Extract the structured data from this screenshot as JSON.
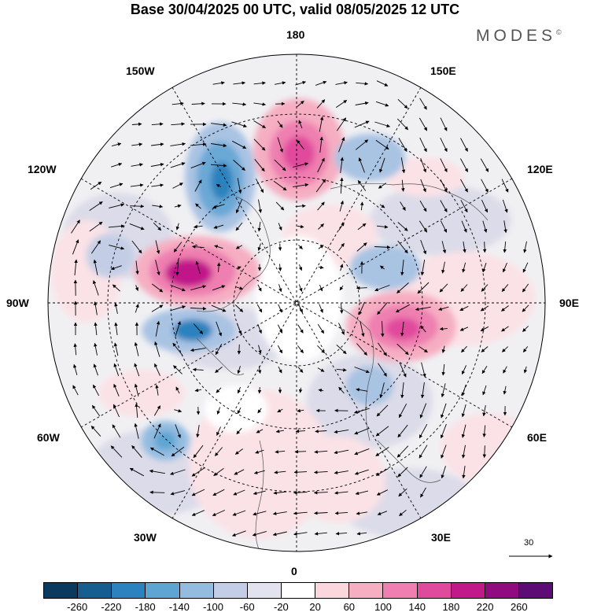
{
  "title": "Base 30/04/2025 00 UTC, valid 08/05/2025 12 UTC",
  "brand": "MODES",
  "brand_mark": "©",
  "longitude_labels": {
    "top": "180",
    "bottom": "0",
    "left": "90W",
    "right": "90E",
    "upper_left_1": "150W",
    "upper_left_2": "120W",
    "lower_left_1": "60W",
    "lower_left_2": "30W",
    "upper_right_1": "150E",
    "upper_right_2": "120E",
    "lower_right_1": "60E",
    "lower_right_2": "30E"
  },
  "vector_reference_value": "30",
  "colorbar": {
    "ticks": [
      "-260",
      "-220",
      "-180",
      "-140",
      "-100",
      "-60",
      "-20",
      "20",
      "60",
      "100",
      "140",
      "180",
      "220",
      "260"
    ],
    "colors": [
      "#0b3a5f",
      "#175e90",
      "#2c82be",
      "#5ea5d3",
      "#93bce0",
      "#c3cee6",
      "#e3e3ef",
      "#ffffff",
      "#fad7dc",
      "#f6aec2",
      "#ee7fb0",
      "#e04a9c",
      "#c1198a",
      "#8f0b7f",
      "#5c0c74"
    ]
  },
  "anomaly_centers": [
    {
      "sign": "positive",
      "strength": "strong",
      "lon": "150W-180"
    },
    {
      "sign": "negative",
      "strength": "strong",
      "lon": "150W"
    },
    {
      "sign": "positive",
      "strength": "strong",
      "lon": "100W"
    },
    {
      "sign": "negative",
      "strength": "moderate",
      "lon": "70W"
    },
    {
      "sign": "positive",
      "strength": "strong",
      "lon": "90E"
    },
    {
      "sign": "negative",
      "strength": "moderate",
      "lon": "120E"
    },
    {
      "sign": "negative",
      "strength": "moderate",
      "lon": "45W"
    }
  ]
}
